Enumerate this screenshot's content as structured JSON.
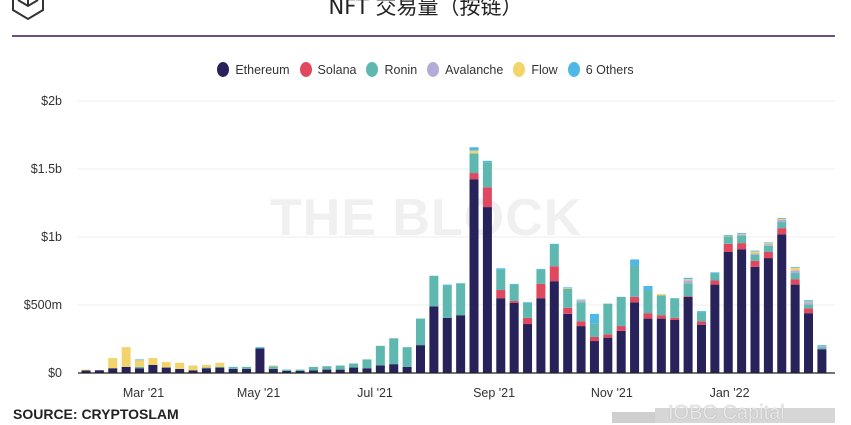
{
  "title": "NFT 交易量（按链）",
  "source": "SOURCE: CRYPTOSLAM",
  "watermark": "THE BLOCK",
  "corner_watermark": "IOBC Capital",
  "chart_data": {
    "type": "bar",
    "stacked": true,
    "title": "NFT 交易量（按链）",
    "xlabel": "",
    "ylabel": "",
    "ylim": [
      0,
      2000
    ],
    "yunit": "$m",
    "yticks": [
      {
        "value": 0,
        "label": "$0"
      },
      {
        "value": 500,
        "label": "$500m"
      },
      {
        "value": 1000,
        "label": "$1b"
      },
      {
        "value": 1500,
        "label": "$1.5b"
      },
      {
        "value": 2000,
        "label": "$2b"
      }
    ],
    "xticks": [
      {
        "week": 4.3,
        "label": "Mar '21"
      },
      {
        "week": 12.9,
        "label": "May '21"
      },
      {
        "week": 21.6,
        "label": "Jul '21"
      },
      {
        "week": 30.5,
        "label": "Sep '21"
      },
      {
        "week": 39.3,
        "label": "Nov '21"
      },
      {
        "week": 48.1,
        "label": "Jan '22"
      }
    ],
    "grid": true,
    "legend_position": "top-center",
    "series": [
      {
        "name": "Ethereum",
        "color": "#27225a",
        "values": [
          20,
          20,
          35,
          45,
          35,
          60,
          40,
          30,
          20,
          35,
          40,
          30,
          30,
          180,
          30,
          15,
          15,
          20,
          25,
          25,
          40,
          35,
          55,
          65,
          45,
          205,
          490,
          405,
          425,
          1425,
          1220,
          550,
          515,
          360,
          550,
          675,
          435,
          345,
          235,
          260,
          310,
          520,
          400,
          400,
          390,
          560,
          355,
          650,
          890,
          910,
          780,
          845,
          1020,
          650,
          440,
          175
        ]
      },
      {
        "name": "Solana",
        "color": "#e0485f",
        "values": [
          0,
          0,
          0,
          0,
          0,
          0,
          0,
          0,
          0,
          0,
          0,
          0,
          0,
          0,
          0,
          0,
          0,
          0,
          0,
          0,
          0,
          0,
          0,
          0,
          0,
          0,
          0,
          0,
          0,
          45,
          145,
          60,
          15,
          45,
          105,
          110,
          45,
          35,
          30,
          25,
          35,
          40,
          40,
          25,
          15,
          5,
          25,
          30,
          60,
          45,
          45,
          45,
          45,
          40,
          35,
          0
        ]
      },
      {
        "name": "Ronin",
        "color": "#5fb8b0",
        "values": [
          0,
          0,
          0,
          0,
          10,
          0,
          0,
          0,
          0,
          5,
          5,
          15,
          15,
          0,
          20,
          10,
          10,
          25,
          25,
          30,
          30,
          65,
          145,
          190,
          145,
          195,
          225,
          240,
          230,
          145,
          185,
          150,
          120,
          110,
          105,
          160,
          140,
          140,
          100,
          225,
          215,
          230,
          170,
          145,
          145,
          95,
          65,
          55,
          55,
          55,
          45,
          45,
          45,
          45,
          30,
          15
        ]
      },
      {
        "name": "Avalanche",
        "color": "#b3acd8",
        "values": [
          0,
          0,
          0,
          0,
          0,
          0,
          0,
          0,
          0,
          0,
          0,
          0,
          0,
          0,
          0,
          0,
          0,
          0,
          0,
          0,
          0,
          0,
          0,
          0,
          0,
          0,
          0,
          0,
          0,
          0,
          0,
          0,
          0,
          0,
          0,
          0,
          0,
          10,
          0,
          0,
          0,
          0,
          0,
          0,
          0,
          20,
          0,
          0,
          0,
          10,
          10,
          10,
          15,
          20,
          15,
          10
        ]
      },
      {
        "name": "Flow",
        "color": "#f2d46b",
        "values": [
          5,
          0,
          75,
          145,
          50,
          50,
          40,
          45,
          35,
          20,
          30,
          0,
          0,
          0,
          5,
          0,
          0,
          0,
          0,
          0,
          0,
          0,
          0,
          0,
          0,
          0,
          0,
          0,
          0,
          20,
          0,
          0,
          0,
          0,
          0,
          0,
          5,
          5,
          0,
          0,
          0,
          0,
          0,
          10,
          0,
          10,
          0,
          0,
          5,
          5,
          15,
          10,
          10,
          20,
          5,
          0
        ]
      },
      {
        "name": "6 Others",
        "color": "#4fb8e8",
        "values": [
          0,
          0,
          0,
          0,
          5,
          0,
          0,
          0,
          0,
          0,
          0,
          0,
          0,
          10,
          0,
          0,
          0,
          0,
          0,
          0,
          0,
          0,
          0,
          0,
          0,
          0,
          0,
          5,
          5,
          25,
          10,
          10,
          5,
          5,
          5,
          5,
          5,
          5,
          70,
          0,
          0,
          45,
          30,
          0,
          0,
          10,
          10,
          5,
          5,
          5,
          5,
          5,
          5,
          5,
          10,
          5
        ]
      }
    ]
  }
}
